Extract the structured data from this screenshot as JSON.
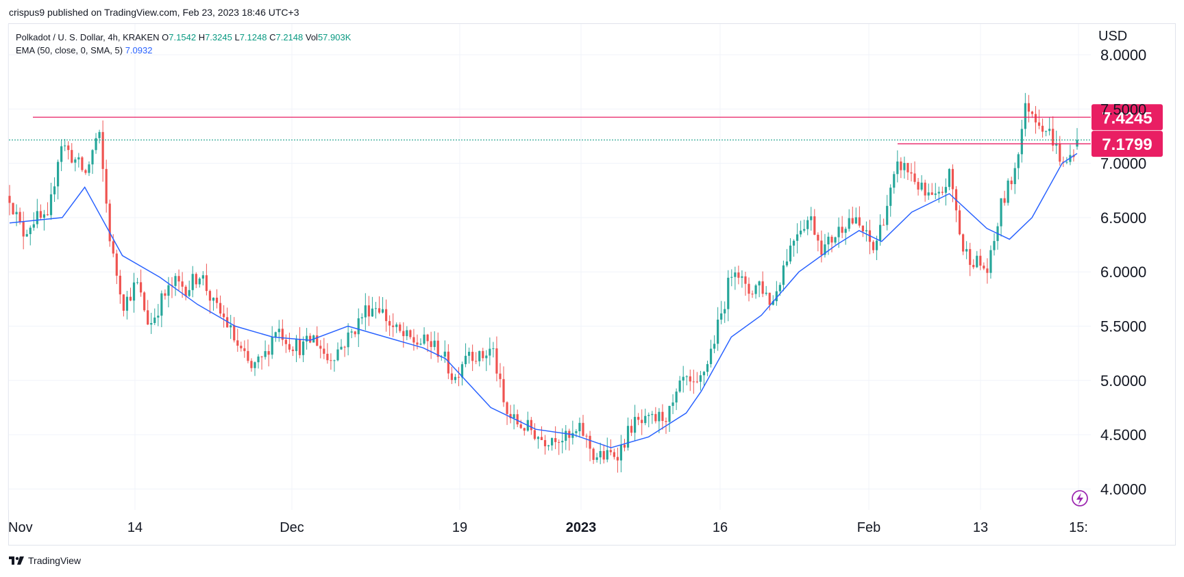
{
  "publisher": "crispus9 published on TradingView.com, Feb 23, 2023 18:46 UTC+3",
  "footer": {
    "brand": "TradingView"
  },
  "legend": {
    "symbol": "Polkadot / U. S. Dollar, 4h, KRAKEN",
    "open_key": "O",
    "open": "7.1542",
    "high_key": "H",
    "high": "7.3245",
    "low_key": "L",
    "low": "7.1248",
    "close_key": "C",
    "close": "7.2148",
    "vol_key": "Vol",
    "vol": "57.903K",
    "ema_label": "EMA (50, close, 0, SMA, 5)",
    "ema_value": "7.0932"
  },
  "colors": {
    "up": "#26a69a",
    "down": "#ef5350",
    "ema": "#2962ff",
    "level": "#e91e63",
    "current_line": "#089981",
    "grid": "#f0f3fa"
  },
  "chart_data": {
    "type": "candlestick",
    "currency": "USD",
    "ylim": [
      3.75,
      8.35
    ],
    "y_ticks": [
      4.0,
      4.5,
      5.0,
      5.5,
      6.0,
      6.5,
      7.0,
      7.5,
      8.0
    ],
    "y_tick_labels": [
      "4.0000",
      "4.5000",
      "5.0000",
      "5.5000",
      "6.0000",
      "6.5000",
      "7.0000",
      "7.5000",
      "8.0000"
    ],
    "x_ticks": [
      {
        "label": "Nov",
        "bold": false
      },
      {
        "label": "14",
        "bold": false
      },
      {
        "label": "Dec",
        "bold": false
      },
      {
        "label": "19",
        "bold": false
      },
      {
        "label": "2023",
        "bold": true
      },
      {
        "label": "16",
        "bold": false
      },
      {
        "label": "Feb",
        "bold": false
      },
      {
        "label": "13",
        "bold": false
      },
      {
        "label": "15:",
        "bold": false
      }
    ],
    "current_price": 7.2148,
    "levels": [
      {
        "value": 7.4245,
        "label": "7.4245"
      },
      {
        "value": 7.1799,
        "label": "7.1799"
      }
    ],
    "close_path": [
      6.7,
      6.35,
      6.5,
      6.45,
      7.2,
      7.05,
      6.9,
      7.3,
      6.2,
      5.7,
      5.9,
      5.5,
      5.75,
      5.9,
      5.85,
      6.0,
      5.7,
      5.55,
      5.3,
      5.1,
      5.2,
      5.5,
      5.35,
      5.3,
      5.4,
      5.2,
      5.3,
      5.45,
      5.65,
      5.7,
      5.5,
      5.4,
      5.35,
      5.35,
      5.25,
      5.0,
      5.3,
      5.2,
      5.3,
      4.7,
      4.6,
      4.55,
      4.45,
      4.5,
      4.45,
      4.55,
      4.3,
      4.3,
      4.35,
      4.6,
      4.6,
      4.65,
      4.7,
      5.0,
      4.9,
      5.2,
      5.6,
      6.1,
      5.8,
      5.9,
      5.7,
      6.1,
      6.4,
      6.5,
      6.2,
      6.35,
      6.5,
      6.4,
      6.2,
      6.6,
      7.0,
      6.9,
      6.7,
      6.65,
      6.9,
      6.2,
      6.1,
      6.0,
      6.6,
      6.9,
      7.55,
      7.4,
      7.25,
      6.95,
      7.2
    ],
    "ema_points": [
      {
        "slot": 0,
        "value": 6.45
      },
      {
        "slot": 70,
        "value": 6.5
      },
      {
        "slot": 100,
        "value": 6.78
      },
      {
        "slot": 150,
        "value": 6.15
      },
      {
        "slot": 200,
        "value": 5.95
      },
      {
        "slot": 250,
        "value": 5.7
      },
      {
        "slot": 300,
        "value": 5.5
      },
      {
        "slot": 350,
        "value": 5.4
      },
      {
        "slot": 400,
        "value": 5.37
      },
      {
        "slot": 450,
        "value": 5.5
      },
      {
        "slot": 500,
        "value": 5.4
      },
      {
        "slot": 550,
        "value": 5.3
      },
      {
        "slot": 580,
        "value": 5.2
      },
      {
        "slot": 640,
        "value": 4.75
      },
      {
        "slot": 700,
        "value": 4.55
      },
      {
        "slot": 750,
        "value": 4.5
      },
      {
        "slot": 800,
        "value": 4.38
      },
      {
        "slot": 850,
        "value": 4.48
      },
      {
        "slot": 900,
        "value": 4.7
      },
      {
        "slot": 920,
        "value": 4.9
      },
      {
        "slot": 960,
        "value": 5.4
      },
      {
        "slot": 1000,
        "value": 5.6
      },
      {
        "slot": 1050,
        "value": 6.0
      },
      {
        "slot": 1100,
        "value": 6.25
      },
      {
        "slot": 1130,
        "value": 6.38
      },
      {
        "slot": 1160,
        "value": 6.28
      },
      {
        "slot": 1200,
        "value": 6.55
      },
      {
        "slot": 1250,
        "value": 6.72
      },
      {
        "slot": 1300,
        "value": 6.4
      },
      {
        "slot": 1330,
        "value": 6.3
      },
      {
        "slot": 1360,
        "value": 6.5
      },
      {
        "slot": 1400,
        "value": 7.0
      },
      {
        "slot": 1420,
        "value": 7.09
      }
    ],
    "slot_range": [
      0,
      1420
    ]
  }
}
